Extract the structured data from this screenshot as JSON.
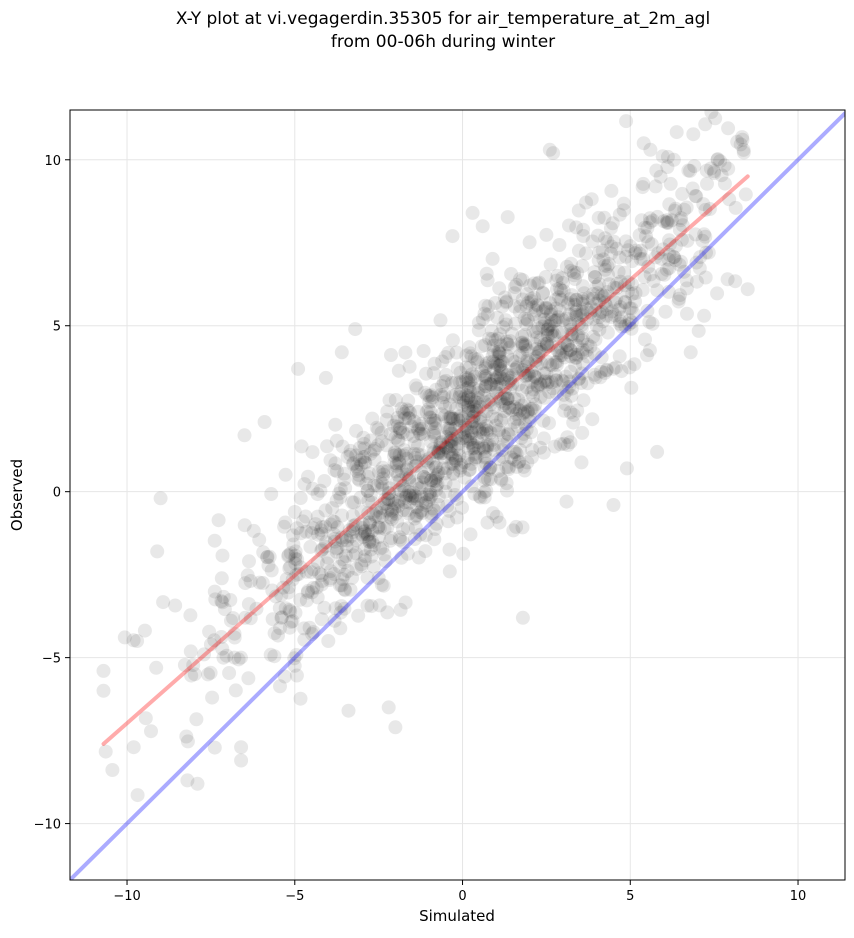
{
  "chart_data": {
    "type": "scatter",
    "title": "X-Y plot at vi.vegagerdin.35305 for air_temperature_at_2m_agl",
    "subtitle": "from 00-06h during winter",
    "xlabel": "Simulated",
    "ylabel": "Observed",
    "xlim": [
      -11.7,
      11.4
    ],
    "ylim": [
      -11.7,
      11.5
    ],
    "x_ticks": [
      -10,
      -5,
      0,
      5,
      10
    ],
    "y_ticks": [
      -10,
      -5,
      0,
      5,
      10
    ],
    "x_tick_labels": [
      "−10",
      "−5",
      "0",
      "5",
      "10"
    ],
    "y_tick_labels": [
      "−10",
      "−5",
      "0",
      "5",
      "10"
    ],
    "grid": true,
    "point_color": "#000000",
    "point_opacity": 0.09,
    "cloud": {
      "count": 1500,
      "x_mean": 0.5,
      "x_sd": 3.6,
      "slope": 0.88,
      "intercept": 2.0,
      "residual_sd": 1.5,
      "x_range": [
        -10.7,
        8.5
      ]
    },
    "sample_points": [
      {
        "x": -10.7,
        "y": -5.4
      },
      {
        "x": -10.7,
        "y": -6.0
      },
      {
        "x": -9.8,
        "y": -7.7
      },
      {
        "x": -9.7,
        "y": -4.5
      },
      {
        "x": -9.0,
        "y": -0.2
      },
      {
        "x": -9.1,
        "y": -1.8
      },
      {
        "x": -8.2,
        "y": -8.7
      },
      {
        "x": -7.9,
        "y": -8.8
      },
      {
        "x": -6.6,
        "y": -8.1
      },
      {
        "x": -6.6,
        "y": -7.7
      },
      {
        "x": -5.9,
        "y": 2.1
      },
      {
        "x": -6.5,
        "y": 1.7
      },
      {
        "x": -4.9,
        "y": 3.7
      },
      {
        "x": -3.6,
        "y": 4.2
      },
      {
        "x": -3.2,
        "y": 4.9
      },
      {
        "x": -2.2,
        "y": -6.5
      },
      {
        "x": -2.0,
        "y": -7.1
      },
      {
        "x": -3.4,
        "y": -6.6
      },
      {
        "x": -0.3,
        "y": 7.7
      },
      {
        "x": 0.3,
        "y": 8.4
      },
      {
        "x": 0.6,
        "y": 8.0
      },
      {
        "x": 1.8,
        "y": -3.8
      },
      {
        "x": 2.6,
        "y": 10.3
      },
      {
        "x": 2.7,
        "y": 10.2
      },
      {
        "x": 5.4,
        "y": 10.5
      },
      {
        "x": 5.6,
        "y": 10.3
      },
      {
        "x": 6.3,
        "y": 10.0
      },
      {
        "x": 7.6,
        "y": 10.0
      },
      {
        "x": 7.5,
        "y": 9.6
      },
      {
        "x": 4.9,
        "y": 0.7
      },
      {
        "x": 4.5,
        "y": -0.4
      },
      {
        "x": 5.8,
        "y": 1.2
      },
      {
        "x": 8.5,
        "y": 6.1
      },
      {
        "x": 7.9,
        "y": 6.4
      },
      {
        "x": 6.8,
        "y": 4.2
      },
      {
        "x": 7.2,
        "y": 5.3
      },
      {
        "x": 3.1,
        "y": -0.3
      },
      {
        "x": 1.0,
        "y": 3.0
      },
      {
        "x": 1.5,
        "y": 3.5
      },
      {
        "x": 2.2,
        "y": 4.3
      },
      {
        "x": 0.8,
        "y": 3.9
      },
      {
        "x": 0.0,
        "y": 2.6
      },
      {
        "x": -0.6,
        "y": 1.5
      },
      {
        "x": -1.5,
        "y": -0.2
      },
      {
        "x": -2.5,
        "y": -2.6
      },
      {
        "x": -4.0,
        "y": -4.5
      },
      {
        "x": -6.8,
        "y": -5.0
      },
      {
        "x": -7.5,
        "y": -4.6
      },
      {
        "x": 4.2,
        "y": 7.0
      },
      {
        "x": 5.0,
        "y": 7.4
      }
    ],
    "series": [
      {
        "type": "line",
        "color": "#ff0000",
        "opacity": 0.33,
        "x": [
          -10.7,
          8.5
        ],
        "y": [
          -7.6,
          9.5
        ]
      },
      {
        "type": "line",
        "color": "#0000ff",
        "opacity": 0.33,
        "x": [
          -11.7,
          11.4
        ],
        "y": [
          -11.7,
          11.4
        ]
      }
    ]
  }
}
